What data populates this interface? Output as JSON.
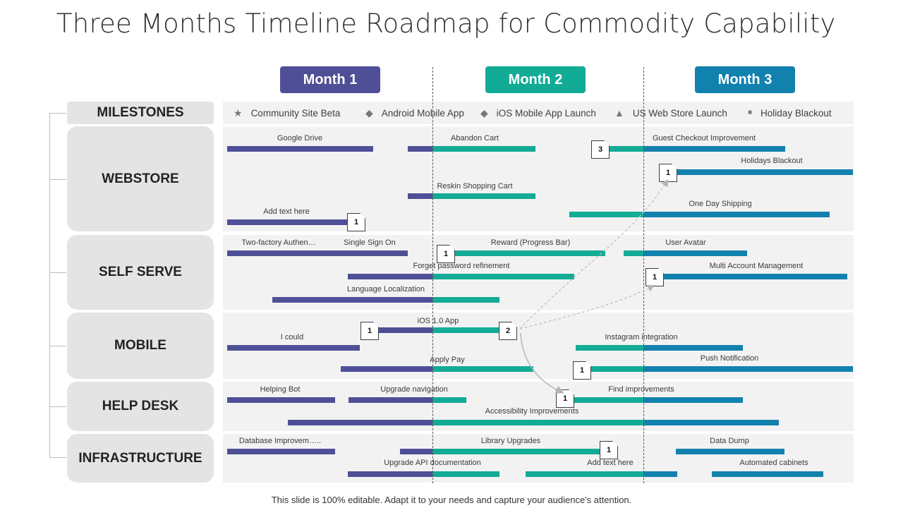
{
  "title": "Three Months Timeline Roadmap for Commodity Capability",
  "months": [
    "Month 1",
    "Month 2",
    "Month 3"
  ],
  "colors": {
    "month1": "#4f4f97",
    "month2": "#12ab95",
    "month3": "#1181ad"
  },
  "milestones": {
    "label": "MILESTONES",
    "items": [
      {
        "icon": "star-icon",
        "text": "Community Site Beta"
      },
      {
        "icon": "diamond-icon",
        "text": "Android Mobile App"
      },
      {
        "icon": "diamond-icon",
        "text": "iOS Mobile App Launch"
      },
      {
        "icon": "warning-triangle-icon",
        "text": "US Web Store Launch"
      },
      {
        "icon": "square-icon",
        "text": "Holiday Blackout"
      }
    ]
  },
  "lanes": [
    "WEBSTORE",
    "SELF SERVE",
    "MOBILE",
    "HELP DESK",
    "INFRASTRUCTURE"
  ],
  "tasks": {
    "google_drive": "Google Drive",
    "abandon_cart": "Abandon Cart",
    "guest_checkout": "Guest Checkout Improvement",
    "holidays_blackout": "Holidays Blackout",
    "reskin_cart": "Reskin Shopping Cart",
    "add_text_1": "Add text here",
    "one_day_shipping": "One Day Shipping",
    "two_factor": "Two-factory Authen…",
    "single_sign_on": "Single Sign On",
    "reward": "Reward (Progress Bar)",
    "user_avatar": "User Avatar",
    "forget_password": "Forget password refinement",
    "multi_account": "Multi Account Management",
    "language": "Language Localization",
    "ios_app": "iOS 1.0 App",
    "i_could": "I could",
    "instagram": "Instagram integration",
    "apply_pay": "Apply Pay",
    "push_notification": "Push Notification",
    "helping_bot": "Helping Bot",
    "upgrade_nav": "Upgrade navigation",
    "find_improvements": "Find improvements",
    "accessibility": "Accessibility Improvements",
    "database": "Database Improvem…..",
    "library": "Library Upgrades",
    "data_dump": "Data Dump",
    "upgrade_api": "Upgrade API documentation",
    "add_text_2": "Add text here",
    "automated_cabinets": "Automated cabinets"
  },
  "flags": {
    "guest_checkout": "3",
    "holidays_blackout": "1",
    "add_text": "1",
    "reward": "1",
    "multi_account": "1",
    "ios_left": "1",
    "ios_right": "2",
    "push_notification": "1",
    "find_improvements": "1",
    "library": "1"
  },
  "footer": "This slide is 100% editable. Adapt it to your needs and capture your audience's attention."
}
